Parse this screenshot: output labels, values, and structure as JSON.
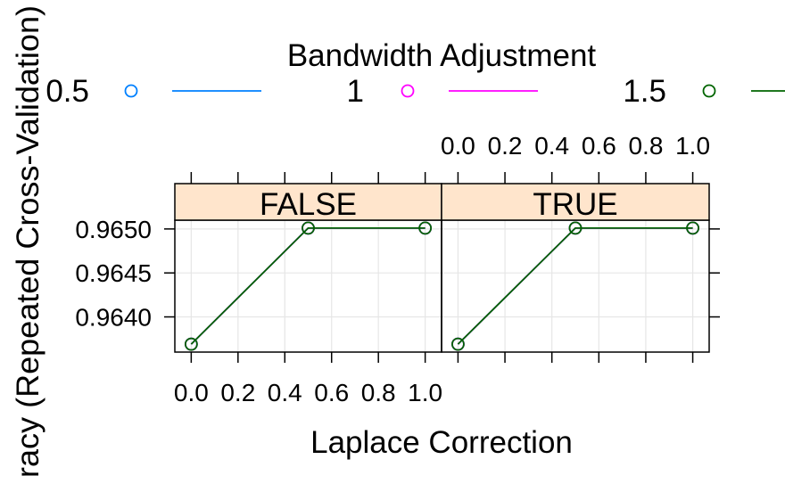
{
  "chart_data": {
    "type": "line",
    "legend": {
      "title": "Bandwidth Adjustment",
      "placement": "top"
    },
    "xlabel": "Laplace Correction",
    "ylabel": "racy (Repeated Cross-Validation)",
    "panels": [
      "FALSE",
      "TRUE"
    ],
    "x": [
      0.0,
      0.5,
      1.0
    ],
    "series": [
      {
        "name": "0.5",
        "color": "#0080ff",
        "values": [
          [
            0.96369,
            0.96501,
            0.96501
          ],
          [
            0.96369,
            0.96501,
            0.96501
          ]
        ]
      },
      {
        "name": "1",
        "color": "#ff00ff",
        "values": [
          [
            0.96369,
            0.96501,
            0.96501
          ],
          [
            0.96369,
            0.96501,
            0.96501
          ]
        ]
      },
      {
        "name": "1.5",
        "color": "#006400",
        "values": [
          [
            0.96369,
            0.96501,
            0.96501
          ],
          [
            0.96369,
            0.96501,
            0.96501
          ]
        ]
      }
    ],
    "x_ticks": {
      "values": [
        0.0,
        0.2,
        0.4,
        0.6,
        0.8,
        1.0
      ],
      "labels": [
        "0.0",
        "0.2",
        "0.4",
        "0.6",
        "0.8",
        "1.0"
      ]
    },
    "y_ticks": {
      "values": [
        0.964,
        0.9645,
        0.965
      ],
      "labels": [
        "0.9640",
        "0.9645",
        "0.9650"
      ]
    },
    "xlim": [
      -0.07,
      1.07
    ],
    "ylim": [
      0.9636,
      0.9651
    ],
    "grid": true,
    "grid_color": "#e6e6e6",
    "strip_color": "#ffe5cc"
  }
}
